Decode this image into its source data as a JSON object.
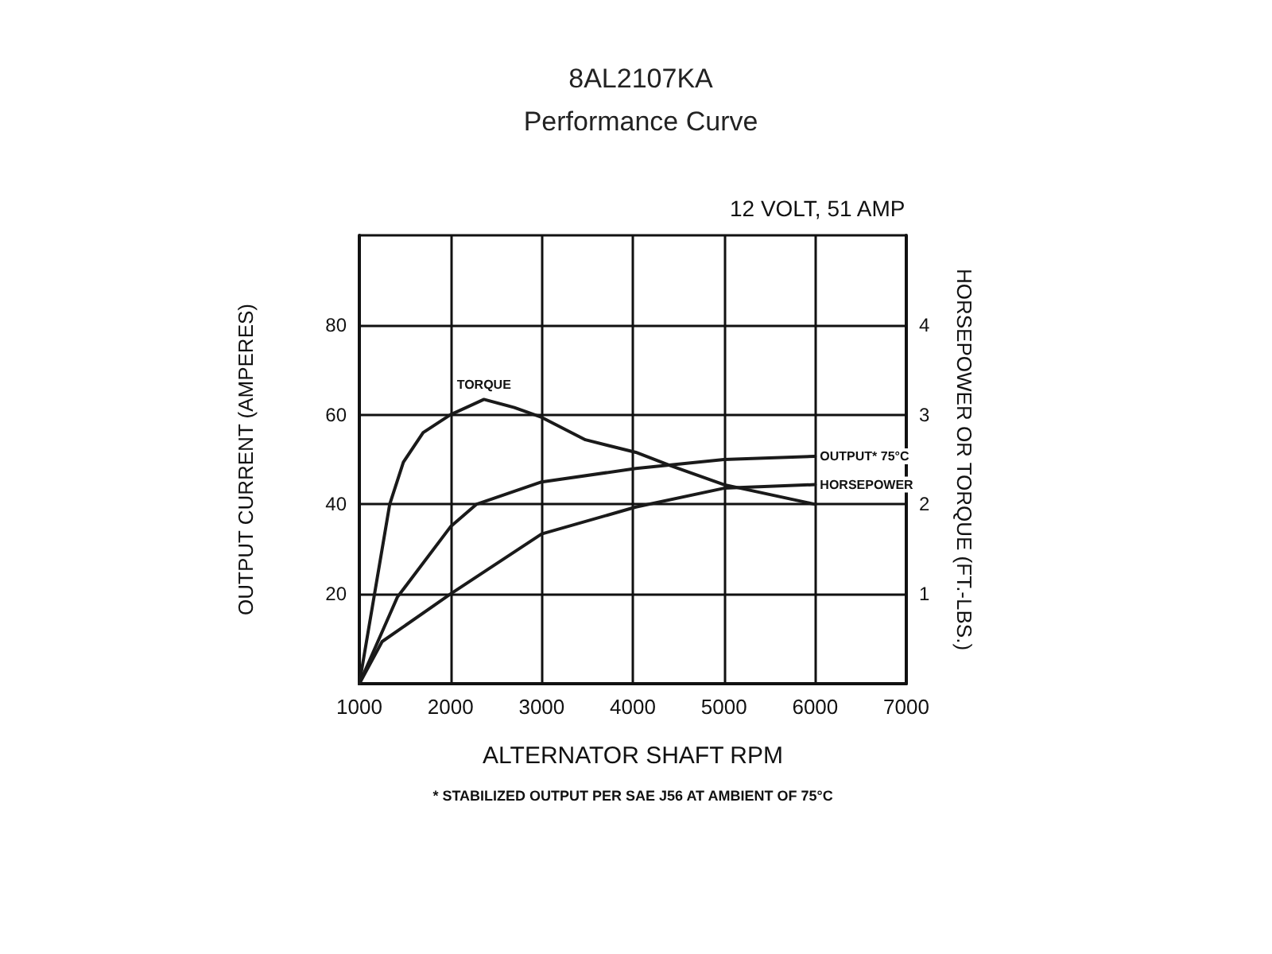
{
  "chart_data": {
    "type": "line",
    "title": "8AL2107KA",
    "subtitle": "Performance Curve",
    "xlabel": "ALTERNATOR SHAFT RPM",
    "ylabel": "OUTPUT CURRENT (AMPERES)",
    "y2label": "HORSEPOWER OR TORQUE (FT.-LBS.)",
    "annotations": [
      "12 VOLT, 51 AMP",
      "* STABILIZED OUTPUT PER SAE J56 AT AMBIENT OF 75°C"
    ],
    "xlim": [
      1000,
      7000
    ],
    "xticks": [
      1000,
      2000,
      3000,
      4000,
      5000,
      6000,
      7000
    ],
    "ylim": [
      0,
      100
    ],
    "yticks": [
      {
        "value": 0,
        "label": null
      },
      20,
      40,
      60,
      80,
      {
        "value": 100,
        "label": null
      }
    ],
    "y2lim": [
      0,
      5
    ],
    "y2ticks": [
      1,
      2,
      3,
      4
    ],
    "grid": true,
    "legend": false,
    "marker": "none",
    "line_style": "solid",
    "series": [
      {
        "name": "TORQUE",
        "color": "#1a1a1a",
        "axis": "y2",
        "x": [
          1000,
          1333,
          1483,
          1700,
          2000,
          2367,
          2700,
          3000,
          3480,
          4033,
          4417,
          5000,
          6000
        ],
        "values": [
          0,
          2.0,
          2.47,
          2.8,
          3.0,
          3.17,
          3.08,
          2.97,
          2.72,
          2.58,
          2.43,
          2.22,
          2.0
        ]
      },
      {
        "name": "OUTPUT* 75°C",
        "color": "#1a1a1a",
        "x": [
          1000,
          1417,
          2000,
          2283,
          3000,
          4033,
          5000,
          6000
        ],
        "values": [
          0,
          19.3,
          35,
          40,
          45,
          48,
          50,
          50.7
        ]
      },
      {
        "name": "HORSEPOWER",
        "color": "#1a1a1a",
        "axis": "y2",
        "x": [
          1000,
          1250,
          2000,
          3000,
          4033,
          5000,
          6000
        ],
        "values": [
          0,
          0.47,
          1.0,
          1.67,
          1.97,
          2.18,
          2.22
        ]
      }
    ]
  }
}
